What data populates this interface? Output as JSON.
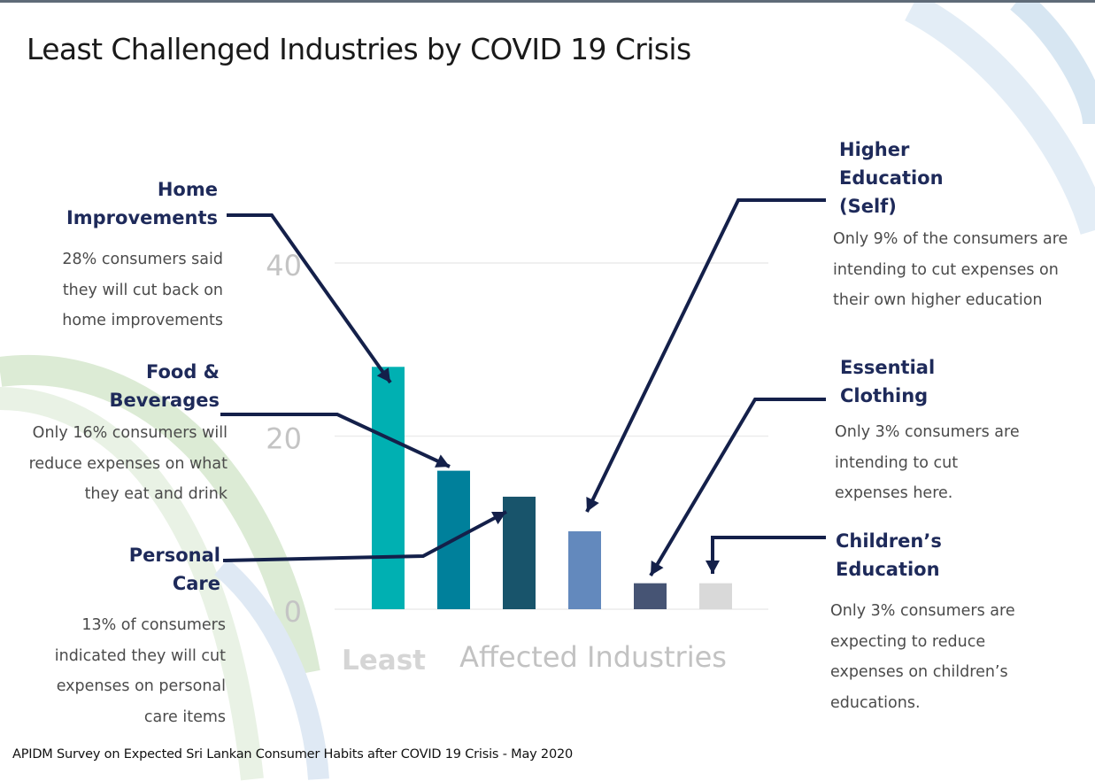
{
  "title": "Least Challenged Industries by COVID 19 Crisis",
  "source": "APIDM Survey on Expected Sri Lankan Consumer Habits after COVID 19 Crisis - May 2020",
  "least_label": "Least",
  "chart_data": {
    "type": "bar",
    "xlabel": "Affected Industries",
    "ylabel": "",
    "ylim": [
      0,
      40
    ],
    "yticks": [
      "0",
      "20",
      "40"
    ],
    "grid": true,
    "categories": [
      "Home Improvements",
      "Food & Beverages",
      "Personal Care",
      "Higher Education (Self)",
      "Essential Clothing",
      "Children’s Education"
    ],
    "values": [
      28,
      16,
      13,
      9,
      3,
      3
    ],
    "colors": [
      "#00b0b2",
      "#00809b",
      "#18546b",
      "#6389bd",
      "#465474",
      "#d9d9d9"
    ]
  },
  "annotations": {
    "home": {
      "title": [
        "Home",
        "Improvements"
      ],
      "desc": [
        "28% consumers said",
        "they will cut back on",
        "home improvements"
      ]
    },
    "food": {
      "title": [
        "Food &",
        "Beverages"
      ],
      "desc": [
        "Only 16% consumers will",
        "reduce expenses on what",
        "they eat and drink"
      ]
    },
    "personal": {
      "title": [
        "Personal",
        "Care"
      ],
      "desc": [
        "13% of consumers",
        "indicated they will cut",
        "expenses on personal",
        "care items"
      ]
    },
    "higher": {
      "title": [
        "Higher",
        "Education",
        "(Self)"
      ],
      "desc": [
        "Only 9% of the consumers are",
        "intending to cut expenses on",
        "their own higher education"
      ]
    },
    "clothing": {
      "title": [
        "Essential",
        "Clothing"
      ],
      "desc": [
        "Only 3% consumers are",
        "intending to cut",
        "expenses here."
      ]
    },
    "children": {
      "title": [
        "Children’s",
        "Education"
      ],
      "desc": [
        "Only 3% consumers are",
        "expecting to reduce",
        "expenses on children’s",
        "educations."
      ]
    }
  },
  "colors": {
    "accent": "#1e2a5a",
    "arrow": "#14204a"
  }
}
